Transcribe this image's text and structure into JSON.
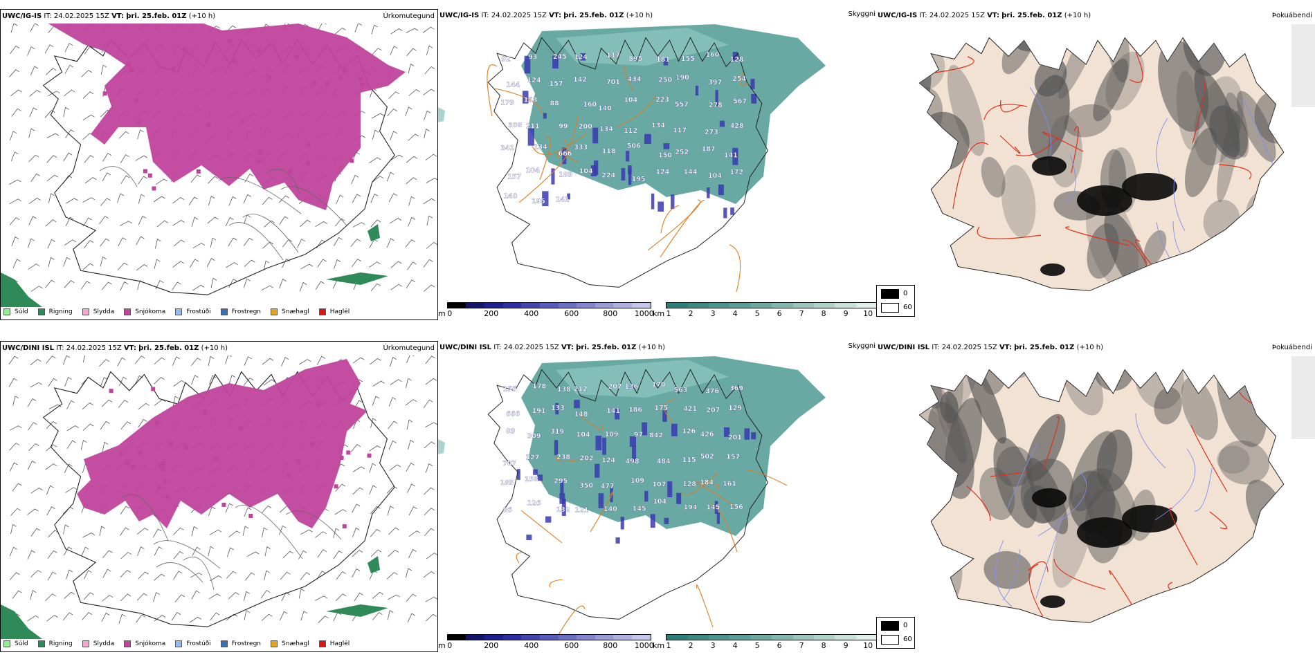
{
  "rows": [
    {
      "model": "UWC/IG-IS",
      "it_label": "IT:",
      "it_value": "24.02.2025 15Z",
      "vt_label": "VT:",
      "vt_value": "þri. 25.feb. 01Z",
      "lead": "(+10 h)",
      "values": [
        "92",
        "93",
        "245",
        "124",
        "117",
        "895",
        "181",
        "155",
        "160",
        "128",
        "144",
        "124",
        "157",
        "142",
        "701",
        "434",
        "250",
        "190",
        "397",
        "254",
        "179",
        "153",
        "88",
        "160",
        "140",
        "104",
        "223",
        "557",
        "278",
        "567",
        "308",
        "211",
        "99",
        "200",
        "134",
        "112",
        "134",
        "117",
        "273",
        "428",
        "341",
        "134",
        "666",
        "333",
        "118",
        "506",
        "150",
        "252",
        "187",
        "141",
        "157",
        "104",
        "189",
        "104",
        "224",
        "195",
        "124",
        "144",
        "104",
        "172",
        "140",
        "195",
        "141"
      ]
    },
    {
      "model": "UWC/DINI ISL",
      "it_label": "IT:",
      "it_value": "24.02.2025 15Z",
      "vt_label": "VT:",
      "vt_value": "þri. 25.feb. 01Z",
      "lead": "(+10 h)",
      "values": [
        "155",
        "178",
        "138",
        "212",
        "207",
        "136",
        "170",
        "563",
        "376",
        "369",
        "666",
        "191",
        "133",
        "148",
        "141",
        "186",
        "175",
        "421",
        "207",
        "129",
        "89",
        "309",
        "319",
        "104",
        "109",
        "97",
        "842",
        "126",
        "426",
        "201",
        "707",
        "327",
        "238",
        "202",
        "124",
        "498",
        "484",
        "115",
        "502",
        "157",
        "185",
        "158",
        "295",
        "350",
        "477",
        "109",
        "107",
        "128",
        "184",
        "161",
        "86",
        "126",
        "132",
        "121",
        "140",
        "145",
        "104",
        "194",
        "145",
        "156"
      ]
    }
  ],
  "panel_titles": {
    "precip": "Úrkomutegund",
    "cloud": "Skyggni",
    "fog": "Þokuábendi"
  },
  "precip_legend": [
    {
      "label": "Súld",
      "color": "#90ee90"
    },
    {
      "label": "Rigning",
      "color": "#2e8b57"
    },
    {
      "label": "Slydda",
      "color": "#f4a6d0"
    },
    {
      "label": "Snjókoma",
      "color": "#c0449c"
    },
    {
      "label": "Frostúði",
      "color": "#8fbcea"
    },
    {
      "label": "Frostregn",
      "color": "#3a6fb5"
    },
    {
      "label": "Snæhagl",
      "color": "#e8a020"
    },
    {
      "label": "Haglél",
      "color": "#dd1111"
    }
  ],
  "height_scale": {
    "unit": "m",
    "ticks": [
      "0",
      "200",
      "400",
      "600",
      "800",
      "1000"
    ],
    "colors": [
      "#000000",
      "#141468",
      "#1e1e8c",
      "#2e2ea0",
      "#4444ac",
      "#5a5ab8",
      "#6e6ec2",
      "#8484cc",
      "#9a9ad6",
      "#b0b0e0",
      "#c6c6ea"
    ]
  },
  "vis_scale": {
    "unit": "km",
    "ticks": [
      "1",
      "2",
      "3",
      "4",
      "5",
      "6",
      "7",
      "8",
      "9",
      "10"
    ],
    "colors": [
      "#2a8078",
      "#3a8a82",
      "#4a948c",
      "#5a9e96",
      "#6aa8a0",
      "#82b6ae",
      "#9ac4bc",
      "#b2d2cc",
      "#cae0dc",
      "#e2eeec"
    ]
  },
  "fog_key": {
    "high": "0",
    "low": "60"
  },
  "colors": {
    "snow": "#c0449c",
    "rain": "#2e8b57",
    "teal": "#4d9b93",
    "orange_roads": "#e07a20",
    "red_roads": "#e0301a",
    "fog_land": "#f2e2d4"
  }
}
